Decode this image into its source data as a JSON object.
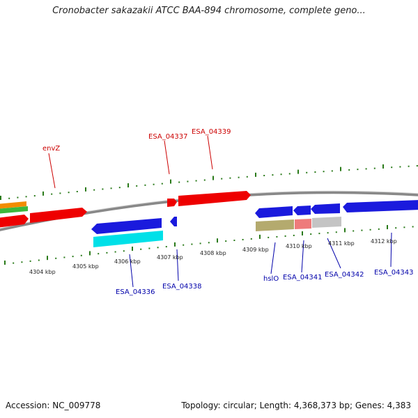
{
  "title": "Cronobacter sakazakii ATCC BAA-894 chromosome, complete geno...",
  "footer": {
    "accession": "Accession: NC_009778",
    "summary": "Topology: circular; Length: 4,368,373 bp; Genes: 4,383"
  },
  "colors": {
    "forward": "#ff0000",
    "reverse": "#0000ee",
    "backbone": "#888888",
    "tick": "#2a7a1a",
    "label_forward": "#cc0000",
    "label_reverse": "#0000aa"
  },
  "scale_labels": [
    "4304 kbp",
    "4305 kbp",
    "4306 kbp",
    "4307 kbp",
    "4308 kbp",
    "4309 kbp",
    "4310 kbp",
    "4311 kbp",
    "4312 kbp"
  ],
  "gene_labels": [
    {
      "text": "envZ",
      "strand": "forward"
    },
    {
      "text": "ESA_04337",
      "strand": "forward"
    },
    {
      "text": "ESA_04339",
      "strand": "forward"
    },
    {
      "text": "ESA_04336",
      "strand": "reverse"
    },
    {
      "text": "ESA_04338",
      "strand": "reverse"
    },
    {
      "text": "hslO",
      "strand": "reverse"
    },
    {
      "text": "ESA_04341",
      "strand": "reverse"
    },
    {
      "text": "ESA_04342",
      "strand": "reverse"
    },
    {
      "text": "ESA_04343",
      "strand": "reverse"
    }
  ]
}
